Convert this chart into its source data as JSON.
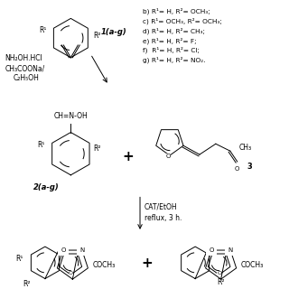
{
  "bg_color": "#ffffff",
  "fig_width": 3.2,
  "fig_height": 3.2,
  "dpi": 100,
  "conditions_lines": [
    "b) R¹= H, R²= OCH₃;",
    "c) R¹= OCH₃, R²= OCH₃;",
    "d) R¹= H, R²= CH₃;",
    "e) R¹= H, R²= F;",
    "f)  R¹= H, R²= Cl;",
    "g) R¹= H, R²= NO₂."
  ]
}
